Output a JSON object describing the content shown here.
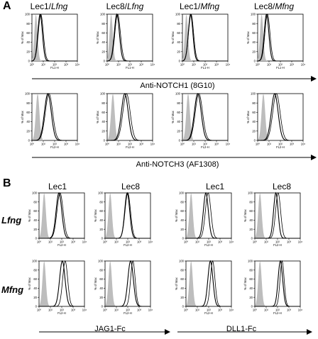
{
  "panels": {
    "A": {
      "letter": "A",
      "column_headers": [
        {
          "cell": "Lec1/",
          "glyco": "Lfng"
        },
        {
          "cell": "Lec8/",
          "glyco": "Lfng"
        },
        {
          "cell": "Lec1/",
          "glyco": "Mfng"
        },
        {
          "cell": "Lec8/",
          "glyco": "Mfng"
        }
      ],
      "row1_caption": "Anti-NOTCH1 (8G10)",
      "row2_caption": "Anti-NOTCH3 (AF1308)"
    },
    "B": {
      "letter": "B",
      "column_headers": [
        "Lec1",
        "Lec8",
        "Lec1",
        "Lec8"
      ],
      "row_headers": [
        "Lfng",
        "Mfng"
      ],
      "caption_left": "JAG1-Fc",
      "caption_right": "DLL1-Fc"
    }
  },
  "axis_labels": {
    "ylabel": "% of Max",
    "xlabel_A_row1": "FL1-H",
    "xlabel_FL2": "FL2-H",
    "xticks": [
      "10⁰",
      "10¹",
      "10²",
      "10³",
      "10⁴"
    ],
    "yticks_A": [
      "0",
      "20",
      "40",
      "60",
      "80",
      "100"
    ],
    "yticks_B": [
      "0",
      "20",
      "40",
      "60",
      "80",
      "100"
    ]
  },
  "colors": {
    "control_fill": "#bdbdbd",
    "trace": "#000000"
  },
  "chart_data": [
    {
      "type": "area",
      "panel": "A",
      "row": 1,
      "col": 1,
      "title": "Lec1/Lfng",
      "xlabel": "FL1-H",
      "ylabel": "% of Max",
      "xscale": "log",
      "xlim": [
        1,
        10000
      ],
      "ylim": [
        0,
        100
      ],
      "series": [
        {
          "name": "",
          "kind": "control",
          "peak_log": 0.35,
          "width": 0.14
        },
        {
          "name": "",
          "kind": "sample",
          "peak_log": 0.72,
          "width": 0.2
        },
        {
          "name": "",
          "kind": "sample",
          "peak_log": 0.78,
          "width": 0.22
        }
      ]
    },
    {
      "type": "area",
      "panel": "A",
      "row": 1,
      "col": 2,
      "title": "Lec8/Lfng",
      "xlabel": "FL1-H",
      "ylabel": "% of Max",
      "xscale": "log",
      "xlim": [
        1,
        10000
      ],
      "ylim": [
        0,
        100
      ],
      "series": [
        {
          "name": "",
          "kind": "control",
          "peak_log": 0.35,
          "width": 0.14
        },
        {
          "name": "",
          "kind": "sample",
          "peak_log": 0.85,
          "width": 0.22
        },
        {
          "name": "",
          "kind": "sample",
          "peak_log": 0.92,
          "width": 0.24
        }
      ]
    },
    {
      "type": "area",
      "panel": "A",
      "row": 1,
      "col": 3,
      "title": "Lec1/Mfng",
      "xlabel": "FL1-H",
      "ylabel": "% of Max",
      "xscale": "log",
      "xlim": [
        1,
        10000
      ],
      "ylim": [
        0,
        100
      ],
      "series": [
        {
          "name": "",
          "kind": "control",
          "peak_log": 0.35,
          "width": 0.14
        },
        {
          "name": "",
          "kind": "sample",
          "peak_log": 0.72,
          "width": 0.2
        },
        {
          "name": "",
          "kind": "sample",
          "peak_log": 0.76,
          "width": 0.22
        }
      ]
    },
    {
      "type": "area",
      "panel": "A",
      "row": 1,
      "col": 4,
      "title": "Lec8/Mfng",
      "xlabel": "FL1-H",
      "ylabel": "% of Max",
      "xscale": "log",
      "xlim": [
        1,
        10000
      ],
      "ylim": [
        0,
        100
      ],
      "series": [
        {
          "name": "",
          "kind": "control",
          "peak_log": 0.35,
          "width": 0.14
        },
        {
          "name": "",
          "kind": "sample",
          "peak_log": 0.78,
          "width": 0.2
        },
        {
          "name": "",
          "kind": "sample",
          "peak_log": 0.86,
          "width": 0.22
        }
      ]
    },
    {
      "type": "area",
      "panel": "A",
      "row": 2,
      "col": 1,
      "title": "Lec1/Lfng",
      "xlabel": "FL2-H",
      "ylabel": "% of Max",
      "xscale": "log",
      "xlim": [
        1,
        10000
      ],
      "ylim": [
        0,
        100
      ],
      "series": [
        {
          "name": "",
          "kind": "control",
          "peak_log": 0.5,
          "width": 0.16
        },
        {
          "name": "",
          "kind": "sample",
          "peak_log": 1.4,
          "width": 0.3
        },
        {
          "name": "",
          "kind": "sample",
          "peak_log": 1.5,
          "width": 0.32
        }
      ]
    },
    {
      "type": "area",
      "panel": "A",
      "row": 2,
      "col": 2,
      "title": "Lec8/Lfng",
      "xlabel": "FL2-H",
      "ylabel": "% of Max",
      "xscale": "log",
      "xlim": [
        1,
        10000
      ],
      "ylim": [
        0,
        100
      ],
      "series": [
        {
          "name": "",
          "kind": "control",
          "peak_log": 0.5,
          "width": 0.16
        },
        {
          "name": "",
          "kind": "sample",
          "peak_log": 1.55,
          "width": 0.3
        },
        {
          "name": "",
          "kind": "sample",
          "peak_log": 1.7,
          "width": 0.32
        }
      ]
    },
    {
      "type": "area",
      "panel": "A",
      "row": 2,
      "col": 3,
      "title": "Lec1/Mfng",
      "xlabel": "FL2-H",
      "ylabel": "% of Max",
      "xscale": "log",
      "xlim": [
        1,
        10000
      ],
      "ylim": [
        0,
        100
      ],
      "series": [
        {
          "name": "",
          "kind": "control",
          "peak_log": 0.5,
          "width": 0.16
        },
        {
          "name": "",
          "kind": "sample",
          "peak_log": 1.35,
          "width": 0.3
        },
        {
          "name": "",
          "kind": "sample",
          "peak_log": 1.45,
          "width": 0.32
        }
      ]
    },
    {
      "type": "area",
      "panel": "A",
      "row": 2,
      "col": 4,
      "title": "Lec8/Mfng",
      "xlabel": "FL2-H",
      "ylabel": "% of Max",
      "xscale": "log",
      "xlim": [
        1,
        10000
      ],
      "ylim": [
        0,
        100
      ],
      "series": [
        {
          "name": "",
          "kind": "control",
          "peak_log": 0.5,
          "width": 0.16
        },
        {
          "name": "",
          "kind": "sample",
          "peak_log": 1.5,
          "width": 0.3
        },
        {
          "name": "",
          "kind": "sample",
          "peak_log": 1.65,
          "width": 0.32
        }
      ]
    },
    {
      "type": "area",
      "panel": "B",
      "row": 1,
      "col": 1,
      "title": "Lec1 Lfng JAG1-Fc",
      "xlabel": "FL2-H",
      "ylabel": "% of Max",
      "xscale": "log",
      "xlim": [
        1,
        10000
      ],
      "ylim": [
        0,
        100
      ],
      "series": [
        {
          "name": "",
          "kind": "control",
          "peak_log": 0.45,
          "width": 0.15
        },
        {
          "name": "",
          "kind": "sample",
          "peak_log": 1.75,
          "width": 0.25
        },
        {
          "name": "",
          "kind": "sample",
          "peak_log": 1.85,
          "width": 0.27
        }
      ]
    },
    {
      "type": "area",
      "panel": "B",
      "row": 1,
      "col": 2,
      "title": "Lec8 Lfng JAG1-Fc",
      "xlabel": "FL2-H",
      "ylabel": "% of Max",
      "xscale": "log",
      "xlim": [
        1,
        10000
      ],
      "ylim": [
        0,
        100
      ],
      "series": [
        {
          "name": "",
          "kind": "control",
          "peak_log": 0.45,
          "width": 0.15
        },
        {
          "name": "",
          "kind": "sample",
          "peak_log": 1.95,
          "width": 0.22
        },
        {
          "name": "",
          "kind": "sample",
          "peak_log": 2.0,
          "width": 0.24
        }
      ]
    },
    {
      "type": "area",
      "panel": "B",
      "row": 1,
      "col": 3,
      "title": "Lec1 Lfng DLL1-Fc",
      "xlabel": "FL2-H",
      "ylabel": "% of Max",
      "xscale": "log",
      "xlim": [
        1,
        10000
      ],
      "ylim": [
        0,
        100
      ],
      "series": [
        {
          "name": "",
          "kind": "control",
          "peak_log": 0.45,
          "width": 0.15
        },
        {
          "name": "",
          "kind": "sample",
          "peak_log": 1.75,
          "width": 0.22
        },
        {
          "name": "",
          "kind": "sample",
          "peak_log": 1.95,
          "width": 0.24
        }
      ]
    },
    {
      "type": "area",
      "panel": "B",
      "row": 1,
      "col": 4,
      "title": "Lec8 Lfng DLL1-Fc",
      "xlabel": "FL2-H",
      "ylabel": "% of Max",
      "xscale": "log",
      "xlim": [
        1,
        10000
      ],
      "ylim": [
        0,
        100
      ],
      "series": [
        {
          "name": "",
          "kind": "control",
          "peak_log": 0.45,
          "width": 0.15
        },
        {
          "name": "",
          "kind": "sample",
          "peak_log": 1.85,
          "width": 0.2
        },
        {
          "name": "",
          "kind": "sample",
          "peak_log": 2.05,
          "width": 0.22
        }
      ]
    },
    {
      "type": "area",
      "panel": "B",
      "row": 2,
      "col": 1,
      "title": "Lec1 Mfng JAG1-Fc",
      "xlabel": "FL2-H",
      "ylabel": "% of Max",
      "xscale": "log",
      "xlim": [
        1,
        10000
      ],
      "ylim": [
        0,
        100
      ],
      "series": [
        {
          "name": "",
          "kind": "control",
          "peak_log": 0.45,
          "width": 0.15
        },
        {
          "name": "",
          "kind": "sample",
          "peak_log": 2.05,
          "width": 0.24
        },
        {
          "name": "",
          "kind": "sample",
          "peak_log": 2.3,
          "width": 0.22
        }
      ]
    },
    {
      "type": "area",
      "panel": "B",
      "row": 2,
      "col": 2,
      "title": "Lec8 Mfng JAG1-Fc",
      "xlabel": "FL2-H",
      "ylabel": "% of Max",
      "xscale": "log",
      "xlim": [
        1,
        10000
      ],
      "ylim": [
        0,
        100
      ],
      "series": [
        {
          "name": "",
          "kind": "control",
          "peak_log": 0.45,
          "width": 0.15
        },
        {
          "name": "",
          "kind": "sample",
          "peak_log": 2.25,
          "width": 0.24
        },
        {
          "name": "",
          "kind": "sample",
          "peak_log": 2.45,
          "width": 0.2
        }
      ]
    },
    {
      "type": "area",
      "panel": "B",
      "row": 2,
      "col": 3,
      "title": "Lec1 Mfng DLL1-Fc",
      "xlabel": "FL2-H",
      "ylabel": "% of Max",
      "xscale": "log",
      "xlim": [
        1,
        10000
      ],
      "ylim": [
        0,
        100
      ],
      "series": [
        {
          "name": "",
          "kind": "control",
          "peak_log": 0.45,
          "width": 0.15
        },
        {
          "name": "",
          "kind": "sample",
          "peak_log": 2.15,
          "width": 0.22
        },
        {
          "name": "",
          "kind": "sample",
          "peak_log": 2.35,
          "width": 0.2
        }
      ]
    },
    {
      "type": "area",
      "panel": "B",
      "row": 2,
      "col": 4,
      "title": "Lec8 Mfng DLL1-Fc",
      "xlabel": "FL2-H",
      "ylabel": "% of Max",
      "xscale": "log",
      "xlim": [
        1,
        10000
      ],
      "ylim": [
        0,
        100
      ],
      "series": [
        {
          "name": "",
          "kind": "control",
          "peak_log": 0.45,
          "width": 0.15
        },
        {
          "name": "",
          "kind": "sample",
          "peak_log": 2.25,
          "width": 0.2
        },
        {
          "name": "",
          "kind": "sample",
          "peak_log": 2.4,
          "width": 0.18
        }
      ]
    }
  ]
}
